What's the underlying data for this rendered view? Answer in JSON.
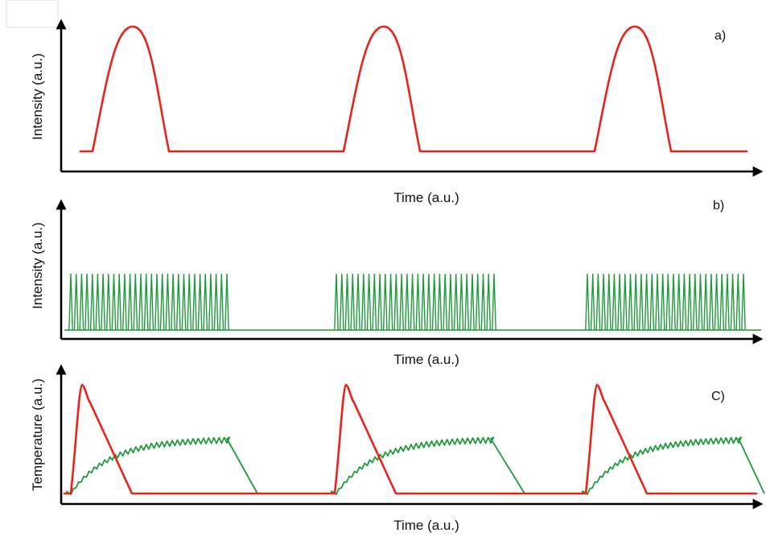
{
  "colors": {
    "intensity_red": "#e8231c",
    "pulse_green": "#1f9a3a",
    "axis": "#000000"
  },
  "panels": [
    {
      "tag": "a)",
      "ylabel": "Intensity (a.u.)",
      "xlabel": "Time (a.u.)"
    },
    {
      "tag": "b)",
      "ylabel": "Intensity (a.u.)",
      "xlabel": "Time (a.u.)"
    },
    {
      "tag": "C)",
      "ylabel": "Temperature (a.u.)",
      "xlabel": "Time (a.u.)"
    }
  ]
}
